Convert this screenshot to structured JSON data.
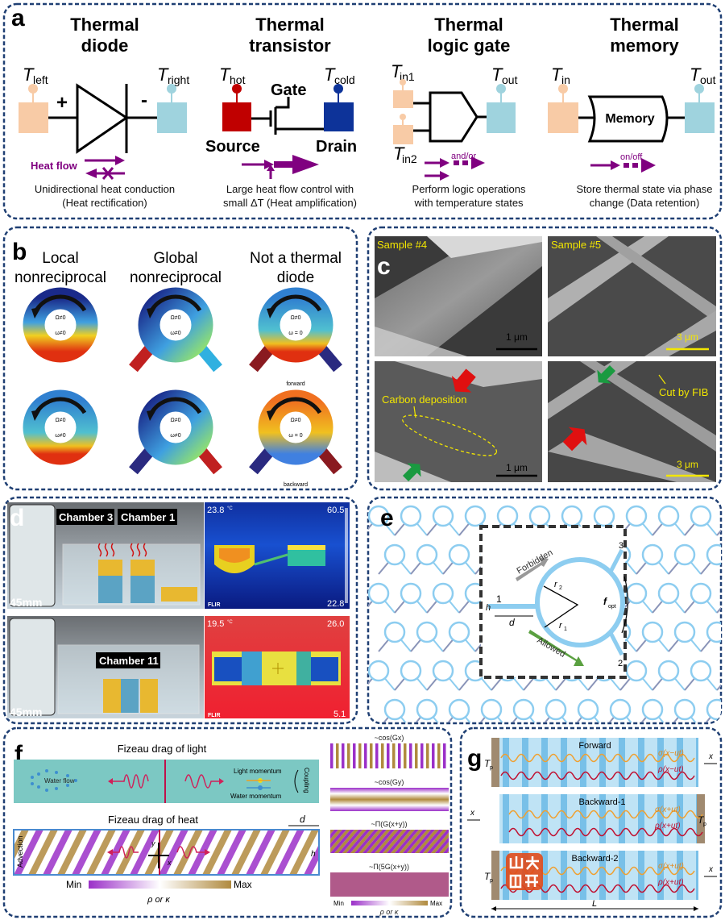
{
  "panel_a": {
    "label": "a",
    "diode": {
      "title1": "Thermal",
      "title2": "diode",
      "t_left": "T",
      "t_left_sub": "left",
      "t_right": "T",
      "t_right_sub": "right",
      "plus": "+",
      "minus": "-",
      "heat_flow": "Heat flow",
      "desc1": "Unidirectional heat conduction",
      "desc2": "(Heat rectification)"
    },
    "transistor": {
      "title1": "Thermal",
      "title2": "transistor",
      "t_hot": "T",
      "t_hot_sub": "hot",
      "t_cold": "T",
      "t_cold_sub": "cold",
      "gate": "Gate",
      "source": "Source",
      "drain": "Drain",
      "desc1": "Large heat flow control with",
      "desc2": "small ΔT (Heat amplification)"
    },
    "logic": {
      "title1": "Thermal",
      "title2": "logic gate",
      "t_in1": "T",
      "t_in1_sub": "in1",
      "t_in2": "T",
      "t_in2_sub": "in2",
      "t_out": "T",
      "t_out_sub": "out",
      "op": "and/or",
      "desc1": "Perform logic operations",
      "desc2": "with temperature states"
    },
    "memory": {
      "title1": "Thermal",
      "title2": "memory",
      "t_in": "T",
      "t_in_sub": "in",
      "t_out": "T",
      "t_out_sub": "out",
      "box": "Memory",
      "op": "on/off",
      "desc1": "Store thermal state via phase",
      "desc2": "change (Data retention)"
    },
    "colors": {
      "hot_light": "#f8cba6",
      "cold_light": "#9fd3de",
      "hot": "#c00000",
      "cold": "#0d3399",
      "flow": "#800080"
    }
  },
  "panel_b": {
    "label": "b",
    "columns": [
      {
        "title1": "Local",
        "title2": "nonreciprocal",
        "top_omega": "Ω≠0",
        "top_w": "ω≠0",
        "bot_omega": "Ω≠0",
        "bot_w": "ω≠0"
      },
      {
        "title1": "Global",
        "title2": "nonreciprocal",
        "top_omega": "Ω≠0",
        "top_w": "ω≠0",
        "bot_omega": "Ω≠0",
        "bot_w": "ω≠0"
      },
      {
        "title1": "Not a thermal",
        "title2": "diode",
        "top_omega": "Ω≠0",
        "top_w": "ω = 0",
        "bot_omega": "Ω≠0",
        "bot_w": "ω = 0"
      }
    ],
    "forward": "forward",
    "backward": "backward"
  },
  "panel_c": {
    "label": "c",
    "sample4": "Sample #4",
    "sample5": "Sample #5",
    "scale_1um": "1 μm",
    "scale_3um": "3 μm",
    "carbon": "Carbon deposition",
    "cut": "Cut by FIB"
  },
  "panel_d": {
    "label": "d",
    "chamber3": "Chamber 3",
    "chamber1": "Chamber 1",
    "chamber11": "Chamber 11",
    "scale": "45mm",
    "top_temp": "23.8",
    "unit": "°C",
    "top_max": "60.5",
    "top_min": "22.8",
    "bot_temp": "19.5",
    "bot_max": "26.0",
    "bot_min": "5.1",
    "flir": "FLIR"
  },
  "panel_e": {
    "label": "e",
    "forbidden": "Forbidden",
    "allowed": "Allowed",
    "port1": "1",
    "port2": "2",
    "port3": "3",
    "r1": "r",
    "r1_sub": "1",
    "r2": "r",
    "r2_sub": "2",
    "d": "d",
    "h": "h",
    "f": "f",
    "f_sub": "opt"
  },
  "panel_f": {
    "label": "f",
    "light_title": "Fizeau drag of light",
    "heat_title": "Fizeau drag of heat",
    "water_flow": "Water flow",
    "light_momentum": "Light momentum",
    "water_momentum": "Water momentum",
    "coupling": "Coupling",
    "advection": "Advection",
    "d": "d",
    "h": "h",
    "x": "x",
    "y": "y",
    "min": "Min",
    "max": "Max",
    "cbar_label": "ρ or κ",
    "strips": [
      "~cos(Gx)",
      "~cos(Gy)",
      "~Π(G(x+y))",
      "~Π(5G(x+y))"
    ],
    "strip_min": "Min",
    "strip_max": "Max",
    "strip_cbar_label": "ρ or κ"
  },
  "panel_g": {
    "label": "g",
    "rows": [
      {
        "title": "Forward",
        "sigma": "σ(x−ut)",
        "rho": "ρ(x−ut)"
      },
      {
        "title": "Backward-1",
        "sigma": "σ(x+ut)",
        "rho": "ρ(x+ut)"
      },
      {
        "title": "Backward-2",
        "sigma": "σ(x+ut)",
        "rho": "ρ(x+ut)"
      }
    ],
    "tp": "T",
    "tp_sub": "p",
    "x": "x",
    "L": "L",
    "watermark": "山大融媒"
  }
}
